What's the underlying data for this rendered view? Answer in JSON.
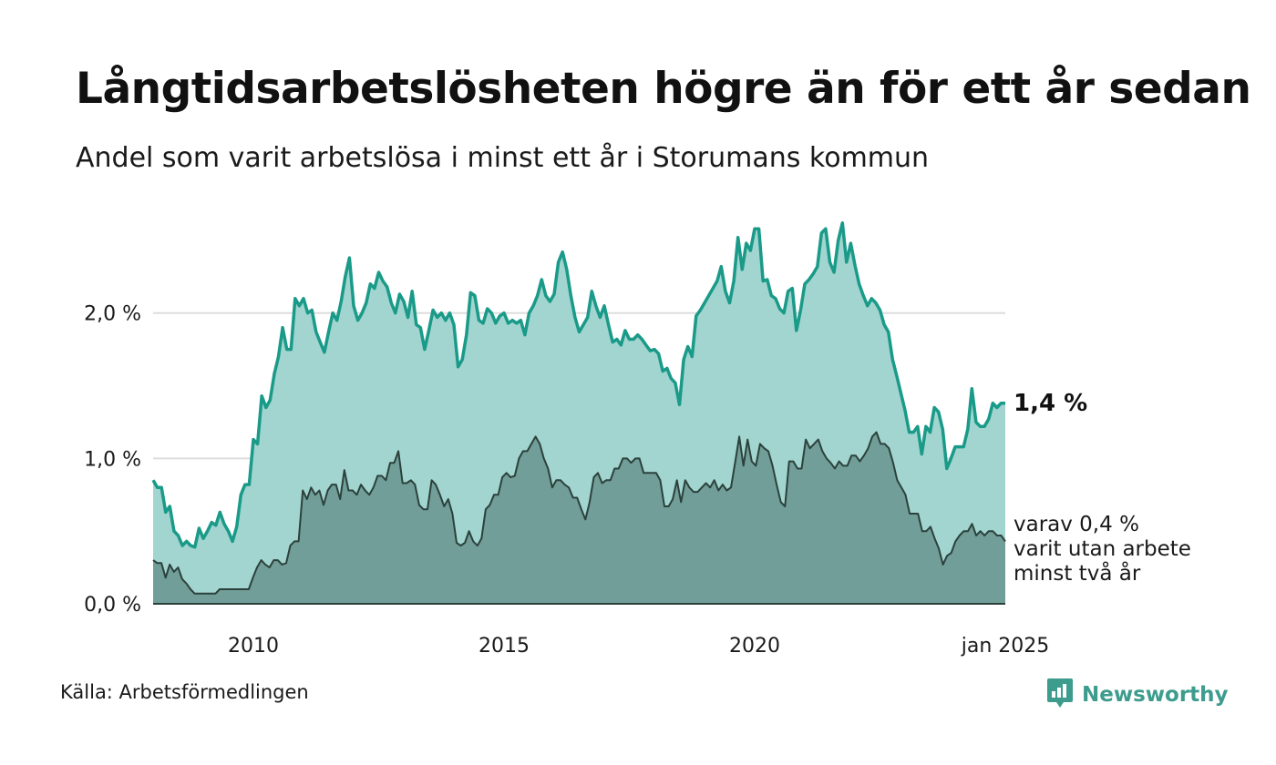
{
  "header": {
    "title": "Långtidsarbetslösheten högre än för ett år sedan",
    "subtitle": "Andel som varit arbetslösa i minst ett år i Storumans kommun"
  },
  "footer": {
    "source": "Källa: Arbetsförmedlingen",
    "brand": "Newsworthy",
    "brand_icon": "bar-chart-speech-bubble-icon"
  },
  "colors": {
    "main_fill": "#a2d5d0",
    "main_line": "#1a9a88",
    "sub_fill": "#719e98",
    "sub_line": "#2c413c",
    "grid": "#dddddd",
    "brand": "#3d9c8d"
  },
  "chart_data": {
    "type": "area",
    "x_start": "2008-01",
    "x_end": "2025-01",
    "ylim": [
      0,
      2.7
    ],
    "y_ticks": [
      0,
      1,
      2
    ],
    "y_tick_labels": [
      "0,0 %",
      "1,0 %",
      "2,0 %"
    ],
    "x_ticks": [
      "2010-01",
      "2015-01",
      "2020-01",
      "2025-01"
    ],
    "x_tick_labels": [
      "2010",
      "2015",
      "2020",
      "jan 2025"
    ],
    "grid": "horizontal",
    "series": [
      {
        "key": "total",
        "end_label": "1,4 %",
        "values": [
          0.85,
          0.8,
          0.8,
          0.63,
          0.67,
          0.5,
          0.47,
          0.4,
          0.43,
          0.4,
          0.39,
          0.52,
          0.45,
          0.5,
          0.56,
          0.54,
          0.63,
          0.55,
          0.5,
          0.43,
          0.53,
          0.75,
          0.82,
          0.82,
          1.13,
          1.1,
          1.43,
          1.35,
          1.4,
          1.58,
          1.7,
          1.9,
          1.75,
          1.75,
          2.1,
          2.05,
          2.1,
          2.0,
          2.02,
          1.87,
          1.8,
          1.73,
          1.87,
          2.0,
          1.95,
          2.08,
          2.25,
          2.38,
          2.05,
          1.95,
          2.0,
          2.07,
          2.2,
          2.17,
          2.28,
          2.22,
          2.18,
          2.07,
          2.0,
          2.13,
          2.08,
          1.97,
          2.15,
          1.92,
          1.9,
          1.75,
          1.88,
          2.02,
          1.97,
          2.0,
          1.95,
          2.0,
          1.92,
          1.63,
          1.68,
          1.85,
          2.14,
          2.12,
          1.95,
          1.93,
          2.03,
          2.0,
          1.93,
          1.98,
          2.0,
          1.93,
          1.95,
          1.93,
          1.95,
          1.85,
          2.0,
          2.05,
          2.12,
          2.23,
          2.12,
          2.08,
          2.13,
          2.35,
          2.42,
          2.3,
          2.12,
          1.97,
          1.87,
          1.92,
          1.97,
          2.15,
          2.05,
          1.97,
          2.05,
          1.92,
          1.8,
          1.82,
          1.78,
          1.88,
          1.82,
          1.82,
          1.85,
          1.82,
          1.78,
          1.74,
          1.75,
          1.72,
          1.6,
          1.62,
          1.55,
          1.52,
          1.37,
          1.68,
          1.77,
          1.7,
          1.98,
          2.02,
          2.07,
          2.12,
          2.17,
          2.22,
          2.32,
          2.15,
          2.07,
          2.22,
          2.52,
          2.3,
          2.48,
          2.43,
          2.58,
          2.58,
          2.22,
          2.23,
          2.12,
          2.1,
          2.03,
          2.0,
          2.15,
          2.17,
          1.88,
          2.02,
          2.2,
          2.23,
          2.27,
          2.32,
          2.55,
          2.58,
          2.35,
          2.28,
          2.5,
          2.62,
          2.35,
          2.48,
          2.33,
          2.2,
          2.12,
          2.05,
          2.1,
          2.07,
          2.02,
          1.92,
          1.87,
          1.68,
          1.57,
          1.45,
          1.33,
          1.18,
          1.18,
          1.22,
          1.03,
          1.22,
          1.18,
          1.35,
          1.32,
          1.2,
          0.93,
          1.0,
          1.08,
          1.08,
          1.08,
          1.2,
          1.48,
          1.25,
          1.22,
          1.22,
          1.27,
          1.38,
          1.35,
          1.38,
          1.38
        ]
      },
      {
        "key": "two_years",
        "end_label_lines": [
          "varav 0,4 %",
          "varit utan arbete",
          "minst två år"
        ],
        "values": [
          0.3,
          0.28,
          0.28,
          0.18,
          0.27,
          0.22,
          0.25,
          0.17,
          0.14,
          0.1,
          0.07,
          0.07,
          0.07,
          0.07,
          0.07,
          0.07,
          0.1,
          0.1,
          0.1,
          0.1,
          0.1,
          0.1,
          0.1,
          0.1,
          0.18,
          0.25,
          0.3,
          0.27,
          0.25,
          0.3,
          0.3,
          0.27,
          0.28,
          0.4,
          0.43,
          0.43,
          0.78,
          0.72,
          0.8,
          0.75,
          0.78,
          0.68,
          0.78,
          0.82,
          0.82,
          0.72,
          0.92,
          0.78,
          0.78,
          0.75,
          0.82,
          0.78,
          0.75,
          0.8,
          0.88,
          0.88,
          0.85,
          0.97,
          0.97,
          1.05,
          0.83,
          0.83,
          0.85,
          0.82,
          0.68,
          0.65,
          0.65,
          0.85,
          0.82,
          0.75,
          0.67,
          0.72,
          0.62,
          0.42,
          0.4,
          0.42,
          0.5,
          0.43,
          0.4,
          0.45,
          0.65,
          0.68,
          0.75,
          0.75,
          0.87,
          0.9,
          0.87,
          0.88,
          1.0,
          1.05,
          1.05,
          1.1,
          1.15,
          1.1,
          1.0,
          0.93,
          0.8,
          0.85,
          0.85,
          0.82,
          0.8,
          0.73,
          0.73,
          0.65,
          0.58,
          0.7,
          0.87,
          0.9,
          0.83,
          0.85,
          0.85,
          0.93,
          0.93,
          1.0,
          1.0,
          0.97,
          1.0,
          1.0,
          0.9,
          0.9,
          0.9,
          0.9,
          0.85,
          0.67,
          0.67,
          0.72,
          0.85,
          0.7,
          0.85,
          0.8,
          0.77,
          0.77,
          0.8,
          0.83,
          0.8,
          0.85,
          0.78,
          0.82,
          0.78,
          0.8,
          0.97,
          1.15,
          0.95,
          1.13,
          0.98,
          0.95,
          1.1,
          1.07,
          1.05,
          0.95,
          0.82,
          0.7,
          0.67,
          0.98,
          0.98,
          0.93,
          0.93,
          1.13,
          1.07,
          1.1,
          1.13,
          1.05,
          1.0,
          0.97,
          0.93,
          0.98,
          0.95,
          0.95,
          1.02,
          1.02,
          0.98,
          1.02,
          1.07,
          1.15,
          1.18,
          1.1,
          1.1,
          1.07,
          0.97,
          0.85,
          0.8,
          0.75,
          0.62,
          0.62,
          0.62,
          0.5,
          0.5,
          0.53,
          0.45,
          0.38,
          0.27,
          0.33,
          0.35,
          0.43,
          0.47,
          0.5,
          0.5,
          0.55,
          0.47,
          0.5,
          0.47,
          0.5,
          0.5,
          0.47,
          0.47,
          0.43
        ]
      }
    ]
  }
}
